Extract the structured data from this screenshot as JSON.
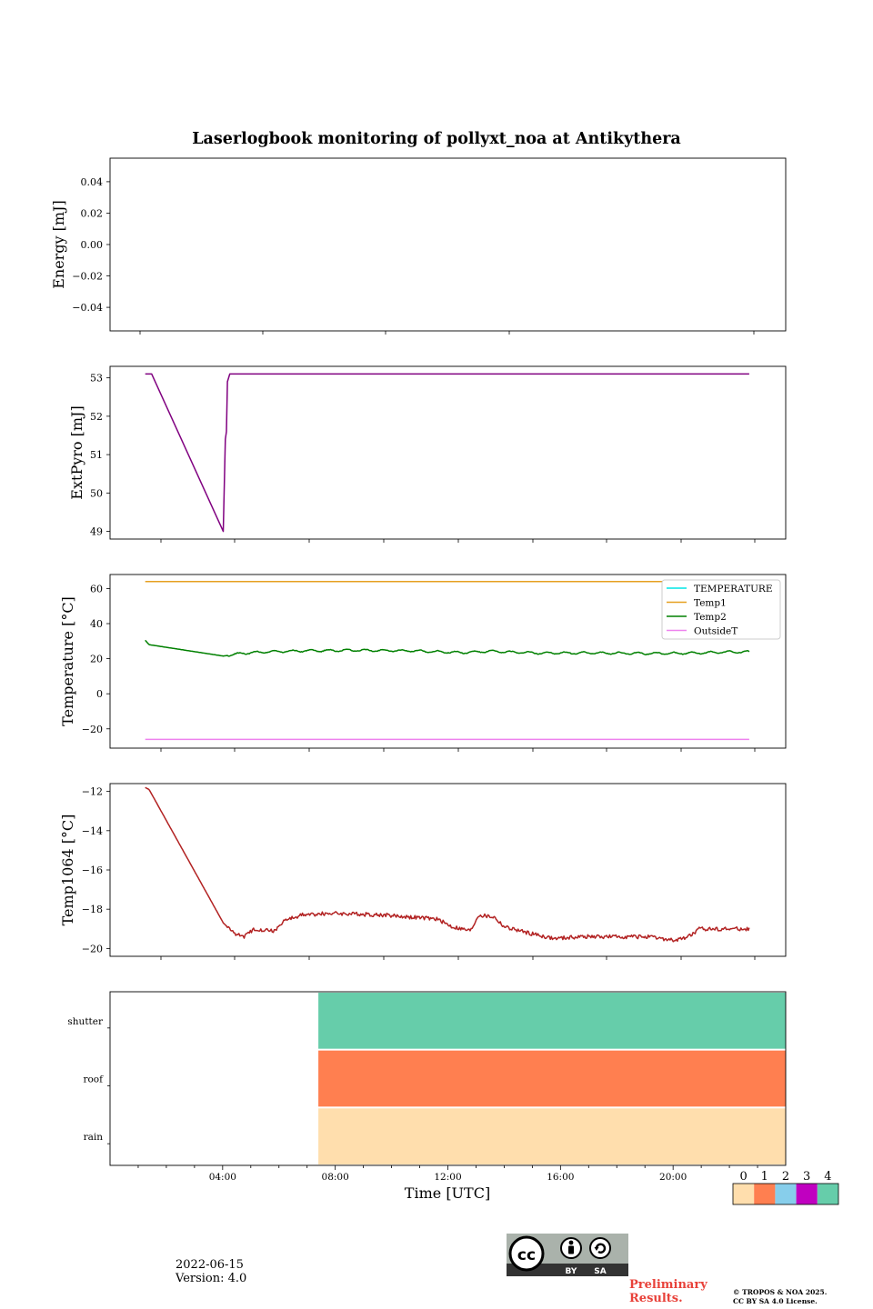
{
  "chart_data": {
    "title": "Laserlogbook monitoring of pollyxt_noa at Antikythera",
    "xlabel": "Time [UTC]",
    "panels": [
      {
        "type": "line",
        "ylabel": "Energy [mJ]",
        "ylim": [
          -0.055,
          0.055
        ],
        "yticks": [
          "0.04",
          "0.02",
          "0.00",
          "−0.02",
          "−0.04"
        ],
        "ytick_values": [
          0.04,
          0.02,
          0.0,
          -0.02,
          -0.04
        ],
        "series": []
      },
      {
        "type": "line",
        "ylabel": "ExtPyro [mJ]",
        "ylim": [
          48.8,
          53.3
        ],
        "yticks": [
          "53",
          "52",
          "51",
          "50",
          "49"
        ],
        "ytick_values": [
          53,
          52,
          51,
          50,
          49
        ],
        "series": [
          {
            "color": "#800080",
            "points": [
              [
                0.8,
                53.1
              ],
              [
                1.05,
                53.1
              ],
              [
                3.8,
                49.0
              ],
              [
                3.88,
                51.4
              ],
              [
                3.92,
                51.6
              ],
              [
                3.96,
                52.9
              ],
              [
                4.05,
                53.1
              ],
              [
                12,
                53.1
              ],
              [
                20,
                53.1
              ],
              [
                24.0,
                53.1
              ]
            ]
          }
        ]
      },
      {
        "type": "line",
        "ylabel": "Temperature [°C]",
        "ylim": [
          -31,
          68
        ],
        "yticks": [
          "60",
          "40",
          "20",
          "0",
          "−20"
        ],
        "ytick_values": [
          60,
          40,
          20,
          0,
          -20
        ],
        "legend": {
          "position": "upper right",
          "entries": [
            "TEMPERATURE",
            "Temp1",
            "Temp2",
            "OutsideT"
          ]
        },
        "series": [
          {
            "name": "TEMPERATURE",
            "color": "#00e5e5",
            "points": []
          },
          {
            "name": "Temp1",
            "color": "#e6a020",
            "points": [
              [
                0.8,
                64
              ],
              [
                24.0,
                64
              ]
            ]
          },
          {
            "name": "Temp2",
            "color": "#008000",
            "points": [
              [
                0.8,
                30.5
              ],
              [
                0.95,
                28
              ],
              [
                3.8,
                21.5
              ],
              [
                4.5,
                23
              ],
              [
                5.5,
                24
              ],
              [
                7,
                24.5
              ],
              [
                9,
                24.8
              ],
              [
                11,
                24.5
              ],
              [
                13,
                23.5
              ],
              [
                14,
                24.2
              ],
              [
                16,
                23.2
              ],
              [
                18,
                23.3
              ],
              [
                20,
                23
              ],
              [
                22,
                23.2
              ],
              [
                23,
                23.8
              ],
              [
                24.0,
                23.8
              ]
            ],
            "wiggle": 0.8
          },
          {
            "name": "OutsideT",
            "color": "#ee82ee",
            "points": [
              [
                0.8,
                -26
              ],
              [
                24.0,
                -26
              ]
            ]
          }
        ]
      },
      {
        "type": "line",
        "ylabel": "Temp1064 [°C]",
        "ylim": [
          -20.4,
          -11.6
        ],
        "yticks": [
          "−12",
          "−14",
          "−16",
          "−18",
          "−20"
        ],
        "ytick_values": [
          -12,
          -14,
          -16,
          -18,
          -20
        ],
        "series": [
          {
            "color": "#b22222",
            "points": [
              [
                0.8,
                -11.8
              ],
              [
                0.95,
                -11.9
              ],
              [
                3.8,
                -18.7
              ],
              [
                4.2,
                -19.2
              ],
              [
                4.6,
                -19.4
              ],
              [
                5,
                -19
              ],
              [
                5.8,
                -19.1
              ],
              [
                6.1,
                -18.6
              ],
              [
                6.8,
                -18.3
              ],
              [
                8,
                -18.2
              ],
              [
                10,
                -18.3
              ],
              [
                12,
                -18.5
              ],
              [
                12.6,
                -18.9
              ],
              [
                13.3,
                -19.1
              ],
              [
                13.6,
                -18.3
              ],
              [
                14.2,
                -18.4
              ],
              [
                14.6,
                -18.9
              ],
              [
                15.5,
                -19.2
              ],
              [
                16.5,
                -19.5
              ],
              [
                17.5,
                -19.4
              ],
              [
                18.5,
                -19.4
              ],
              [
                20,
                -19.4
              ],
              [
                21.2,
                -19.6
              ],
              [
                21.8,
                -19.3
              ],
              [
                22.1,
                -19.0
              ],
              [
                24.0,
                -19.0
              ]
            ],
            "noise": 0.1
          }
        ]
      },
      {
        "type": "heatmap",
        "rows": [
          "shutter",
          "roof",
          "rain"
        ],
        "data_start_hour": 7.4,
        "row_colors": [
          "#66cdaa",
          "#ff7f50",
          "#ffdead"
        ]
      }
    ],
    "xticks": [
      "04:00",
      "08:00",
      "12:00",
      "16:00",
      "20:00"
    ],
    "xtick_hours": [
      4,
      8,
      12,
      16,
      20
    ],
    "colorbar": {
      "labels": [
        "0",
        "1",
        "2",
        "3",
        "4"
      ],
      "colors": [
        "#ffdead",
        "#ff7f50",
        "#87ceeb",
        "#c000c0",
        "#66cdaa"
      ]
    }
  },
  "footer": {
    "date": "2022-06-15",
    "version": "Version: 4.0",
    "preliminary_line1": "Preliminary",
    "preliminary_line2": "Results.",
    "copyright_line1": "© TROPOS & NOA 2025.",
    "copyright_line2": "CC BY SA 4.0 License."
  },
  "license_badge": {
    "cc": "cc",
    "by": "BY",
    "sa": "SA"
  }
}
